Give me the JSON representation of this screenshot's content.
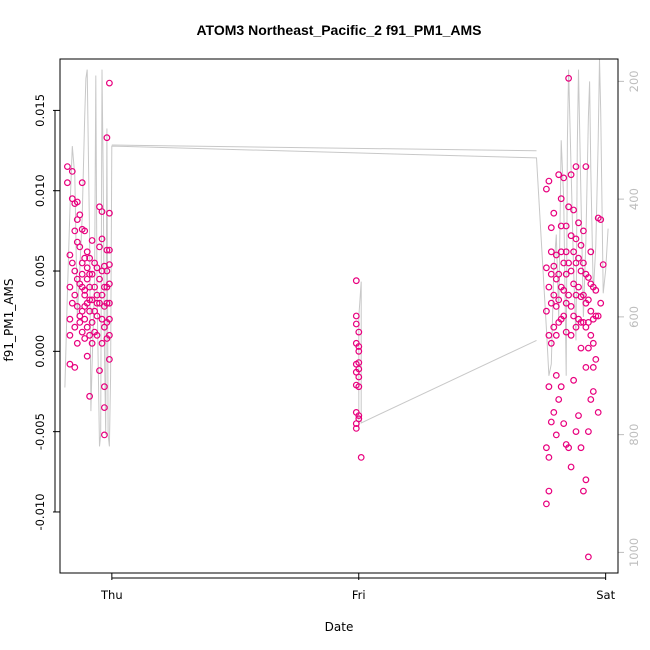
{
  "chart_data": {
    "type": "scatter",
    "title": "ATOM3 Northeast_Pacific_2 f91_PM1_AMS",
    "xlabel": "Date",
    "ylabel": "f91_PM1_AMS",
    "x_axis": {
      "ticks": [
        {
          "label": "Thu",
          "value": 0.0
        },
        {
          "label": "Fri",
          "value": 1.0
        },
        {
          "label": "Sat",
          "value": 2.0
        }
      ],
      "range": [
        -0.21,
        2.05
      ]
    },
    "y_axis": {
      "ticks": [
        -0.01,
        -0.005,
        0.0,
        0.005,
        0.01,
        0.015
      ],
      "tick_labels": [
        "-0.010",
        "-0.005",
        "0.000",
        "0.005",
        "0.010",
        "0.015"
      ],
      "range": [
        -0.0138,
        0.0182
      ]
    },
    "y2_axis": {
      "ticks": [
        200,
        400,
        600,
        800,
        1000
      ],
      "tick_labels": [
        "200",
        "400",
        "600",
        "800",
        "1000"
      ],
      "range": [
        1035,
        162
      ],
      "color": "#bdbdbd"
    },
    "colors": {
      "points": "#e8007e",
      "line": "#c8c8c8"
    },
    "series": [
      {
        "kind": "points",
        "x": [
          -0.18,
          -0.18,
          -0.17,
          -0.17,
          -0.17,
          -0.17,
          -0.17,
          -0.16,
          -0.16,
          -0.16,
          -0.16,
          -0.15,
          -0.15,
          -0.15,
          -0.15,
          -0.15,
          -0.15,
          -0.14,
          -0.14,
          -0.14,
          -0.14,
          -0.14,
          -0.14,
          -0.13,
          -0.13,
          -0.13,
          -0.13,
          -0.13,
          -0.12,
          -0.12,
          -0.12,
          -0.12,
          -0.12,
          -0.12,
          -0.12,
          -0.11,
          -0.11,
          -0.11,
          -0.11,
          -0.11,
          -0.11,
          -0.11,
          -0.1,
          -0.1,
          -0.1,
          -0.1,
          -0.1,
          -0.1,
          -0.09,
          -0.09,
          -0.09,
          -0.09,
          -0.09,
          -0.09,
          -0.09,
          -0.08,
          -0.08,
          -0.08,
          -0.08,
          -0.08,
          -0.07,
          -0.07,
          -0.07,
          -0.07,
          -0.06,
          -0.06,
          -0.06,
          -0.06,
          -0.06,
          -0.05,
          -0.05,
          -0.05,
          -0.05,
          -0.05,
          -0.04,
          -0.04,
          -0.04,
          -0.04,
          -0.04,
          -0.04,
          -0.03,
          -0.03,
          -0.03,
          -0.03,
          -0.03,
          -0.03,
          -0.03,
          -0.02,
          -0.02,
          -0.02,
          -0.02,
          -0.02,
          -0.02,
          -0.02,
          -0.01,
          -0.01,
          -0.01,
          -0.01,
          -0.01,
          -0.01,
          -0.01,
          -0.01,
          -0.01
        ],
        "y": [
          0.0115,
          0.0105,
          0.006,
          0.004,
          0.001,
          -0.0008,
          0.002,
          0.0112,
          0.0095,
          0.0055,
          0.003,
          0.0092,
          0.0075,
          0.005,
          0.0035,
          0.0015,
          -0.001,
          0.0093,
          0.0068,
          0.0045,
          0.0028,
          0.0005,
          0.0082,
          0.0085,
          0.0065,
          0.0042,
          0.0022,
          0.0018,
          0.0105,
          0.0076,
          0.0055,
          0.004,
          0.0025,
          0.0012,
          0.0048,
          0.0075,
          0.0058,
          0.0035,
          0.002,
          0.0008,
          0.0038,
          0.0028,
          0.0062,
          0.0045,
          0.003,
          0.0015,
          -0.0003,
          0.0052,
          0.0058,
          0.004,
          0.0025,
          0.001,
          -0.0028,
          0.0048,
          0.0032,
          0.0069,
          0.0048,
          0.0032,
          0.0018,
          0.0005,
          0.0055,
          0.004,
          0.0025,
          0.0012,
          0.0052,
          0.0035,
          0.0022,
          0.001,
          0.003,
          0.009,
          0.0065,
          0.0045,
          0.003,
          -0.0012,
          0.0087,
          0.007,
          0.005,
          0.0035,
          0.002,
          0.0005,
          0.0053,
          0.004,
          0.0028,
          0.0015,
          -0.0022,
          -0.0035,
          -0.0052,
          0.0063,
          0.005,
          0.004,
          0.003,
          0.0018,
          0.0008,
          0.0133,
          0.0086,
          0.0054,
          0.0042,
          0.003,
          0.002,
          0.001,
          -0.0005,
          0.0167,
          0.0063
        ]
      },
      {
        "kind": "points",
        "x": [
          0.99,
          0.99,
          0.99,
          0.99,
          0.99,
          0.99,
          0.99,
          0.99,
          0.99,
          0.99,
          1.0,
          1.0,
          1.0,
          1.0,
          1.0,
          1.0,
          1.0,
          1.0,
          1.0,
          1.01
        ],
        "y": [
          0.0044,
          0.0022,
          0.0017,
          0.0005,
          -0.0008,
          -0.0013,
          -0.0021,
          -0.0038,
          -0.0045,
          -0.0048,
          0.0012,
          0.0,
          -0.0007,
          -0.0011,
          -0.0022,
          -0.004,
          -0.0042,
          0.0003,
          -0.0016,
          -0.0066
        ]
      },
      {
        "kind": "points",
        "x": [
          1.76,
          1.76,
          1.76,
          1.76,
          1.76,
          1.77,
          1.77,
          1.77,
          1.77,
          1.77,
          1.77,
          1.78,
          1.78,
          1.78,
          1.78,
          1.78,
          1.78,
          1.79,
          1.79,
          1.79,
          1.79,
          1.79,
          1.8,
          1.8,
          1.8,
          1.8,
          1.8,
          1.8,
          1.81,
          1.81,
          1.81,
          1.81,
          1.81,
          1.82,
          1.82,
          1.82,
          1.82,
          1.82,
          1.82,
          1.83,
          1.83,
          1.83,
          1.83,
          1.83,
          1.84,
          1.84,
          1.84,
          1.84,
          1.84,
          1.84,
          1.85,
          1.85,
          1.85,
          1.85,
          1.85,
          1.86,
          1.86,
          1.86,
          1.86,
          1.86,
          1.86,
          1.87,
          1.87,
          1.87,
          1.87,
          1.87,
          1.88,
          1.88,
          1.88,
          1.88,
          1.88,
          1.88,
          1.89,
          1.89,
          1.89,
          1.89,
          1.89,
          1.9,
          1.9,
          1.9,
          1.9,
          1.9,
          1.9,
          1.91,
          1.91,
          1.91,
          1.91,
          1.91,
          1.92,
          1.92,
          1.92,
          1.92,
          1.92,
          1.92,
          1.93,
          1.93,
          1.93,
          1.93,
          1.93,
          1.93,
          1.94,
          1.94,
          1.94,
          1.94,
          1.94,
          1.95,
          1.95,
          1.95,
          1.95,
          1.95,
          1.96,
          1.96,
          1.96,
          1.97,
          1.97,
          1.97,
          1.98,
          1.98,
          1.99
        ],
        "y": [
          0.0101,
          0.0052,
          0.0025,
          -0.006,
          -0.0095,
          0.0106,
          0.004,
          0.001,
          -0.0022,
          -0.0087,
          -0.0066,
          0.0077,
          0.0062,
          0.0048,
          0.003,
          0.0005,
          -0.0044,
          0.0086,
          0.0053,
          0.0035,
          0.0015,
          -0.0038,
          0.006,
          0.0045,
          0.0028,
          0.001,
          -0.0015,
          -0.0052,
          0.011,
          0.0048,
          0.0032,
          0.0018,
          -0.003,
          0.0095,
          0.0078,
          0.0062,
          0.004,
          0.002,
          -0.0022,
          0.0108,
          0.0055,
          0.0038,
          0.0022,
          -0.0045,
          0.0078,
          0.0062,
          0.0048,
          0.003,
          0.0012,
          -0.0058,
          0.017,
          0.009,
          0.0055,
          0.0035,
          -0.006,
          0.011,
          0.0072,
          0.005,
          0.0028,
          0.001,
          -0.0072,
          0.0088,
          0.0062,
          0.0042,
          0.0022,
          -0.0018,
          0.0115,
          0.007,
          0.0055,
          0.0035,
          0.0015,
          -0.005,
          0.008,
          0.0058,
          0.004,
          0.002,
          -0.004,
          0.0066,
          0.005,
          0.0034,
          0.0018,
          0.0002,
          -0.006,
          0.0075,
          0.0055,
          0.0035,
          0.0018,
          -0.0087,
          0.0115,
          0.0048,
          0.003,
          0.0015,
          -0.001,
          -0.008,
          0.0046,
          0.0032,
          0.0018,
          0.0002,
          -0.005,
          -0.0128,
          0.0062,
          0.0042,
          0.0025,
          0.001,
          -0.003,
          0.004,
          0.002,
          0.0005,
          -0.001,
          -0.0025,
          0.0038,
          0.0022,
          -0.0005,
          0.0083,
          0.0022,
          -0.0038,
          0.0082,
          0.003,
          0.0054
        ]
      },
      {
        "kind": "line",
        "axis": "y2",
        "x": [
          -0.19,
          -0.18,
          -0.17,
          -0.16,
          -0.15,
          -0.14,
          -0.13,
          -0.12,
          -0.11,
          -0.105,
          -0.1,
          -0.09,
          -0.085,
          -0.08,
          -0.07,
          -0.065,
          -0.06,
          -0.05,
          -0.045,
          -0.04,
          -0.035,
          -0.03,
          -0.025,
          -0.02,
          -0.015,
          -0.01,
          -0.005,
          0.0,
          1.72,
          1.76,
          1.77,
          1.78,
          1.79,
          1.8,
          1.81,
          1.82,
          1.83,
          1.84,
          1.845,
          1.85,
          1.86,
          1.87,
          1.88,
          1.885,
          1.89,
          1.9,
          1.91,
          1.92,
          1.93,
          1.935,
          1.94,
          1.95,
          1.96,
          1.97,
          1.975,
          1.98,
          1.99,
          2.0,
          2.01
        ],
        "y": [
          720,
          560,
          420,
          310,
          360,
          600,
          520,
          430,
          260,
          195,
          180,
          470,
          760,
          680,
          540,
          190,
          550,
          820,
          800,
          180,
          360,
          650,
          800,
          280,
          800,
          820,
          700,
          310,
          330,
          620,
          700,
          680,
          520,
          460,
          600,
          300,
          400,
          700,
          300,
          180,
          350,
          520,
          640,
          310,
          180,
          400,
          600,
          470,
          260,
          200,
          350,
          560,
          480,
          300,
          150,
          250,
          560,
          520,
          450
        ]
      },
      {
        "kind": "line",
        "axis": "y2",
        "x": [
          0.0,
          1.72
        ],
        "y": [
          308,
          318
        ]
      },
      {
        "kind": "line",
        "axis": "y2",
        "x": [
          1.0,
          1.0,
          1.0,
          1.01,
          1.01,
          1.72
        ],
        "y": [
          790,
          700,
          600,
          540,
          780,
          640
        ]
      }
    ]
  }
}
